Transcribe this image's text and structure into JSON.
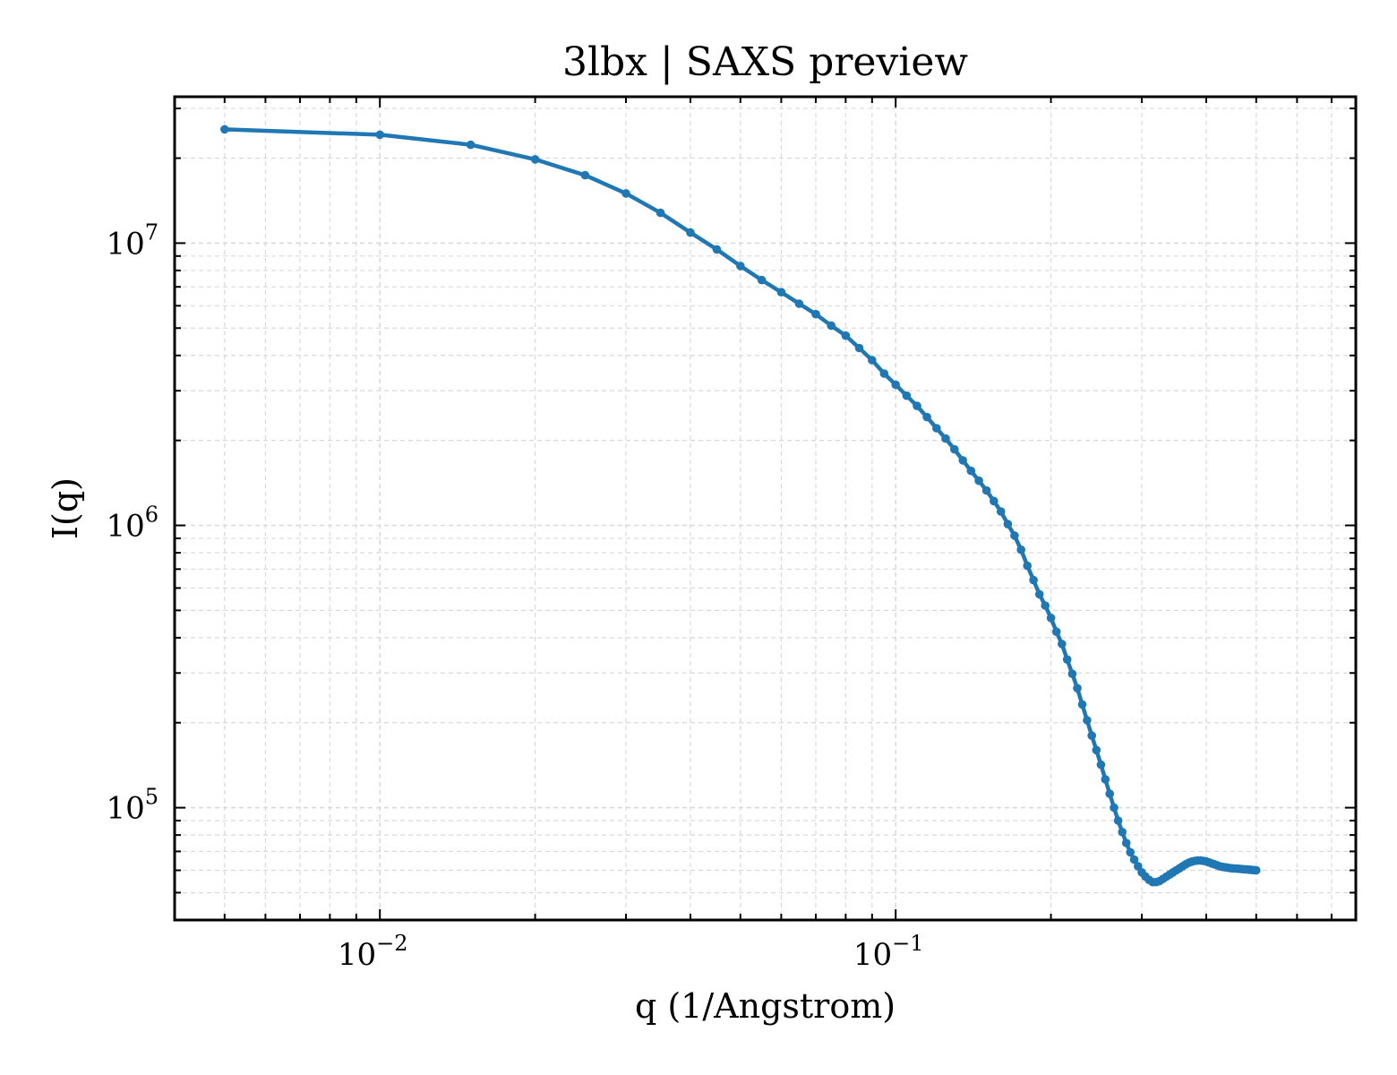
{
  "chart_data": {
    "type": "line",
    "title": "3lbx | SAXS preview",
    "xlabel": "q (1/Angstrom)",
    "ylabel": "I(q)",
    "xscale": "log",
    "yscale": "log",
    "xlim": [
      0.004,
      0.78
    ],
    "ylim": [
      40000,
      33000000
    ],
    "grid": true,
    "colors": {
      "line": "#1f77b4",
      "grid": "#d9d9d9",
      "axis": "#000000"
    },
    "x_ticks": [
      {
        "value": 0.01,
        "base": "10",
        "exp": "−2"
      },
      {
        "value": 0.1,
        "base": "10",
        "exp": "−1"
      }
    ],
    "y_ticks": [
      {
        "value": 100000,
        "base": "10",
        "exp": "5"
      },
      {
        "value": 1000000,
        "base": "10",
        "exp": "6"
      },
      {
        "value": 10000000,
        "base": "10",
        "exp": "7"
      }
    ],
    "series": [
      {
        "marker": "circle",
        "x": [
          0.005,
          0.01,
          0.015,
          0.02,
          0.025,
          0.03,
          0.035,
          0.04,
          0.045,
          0.05,
          0.055,
          0.06,
          0.065,
          0.07,
          0.075,
          0.08,
          0.085,
          0.09,
          0.095,
          0.1,
          0.105,
          0.11,
          0.115,
          0.12,
          0.125,
          0.13,
          0.135,
          0.14,
          0.145,
          0.15,
          0.155,
          0.16,
          0.165,
          0.17,
          0.175,
          0.18,
          0.185,
          0.19,
          0.195,
          0.2,
          0.205,
          0.21,
          0.215,
          0.22,
          0.225,
          0.23,
          0.235,
          0.24,
          0.245,
          0.25,
          0.255,
          0.26,
          0.265,
          0.27,
          0.275,
          0.28,
          0.285,
          0.29,
          0.295,
          0.3,
          0.305,
          0.31,
          0.315,
          0.32,
          0.325,
          0.33,
          0.335,
          0.34,
          0.345,
          0.35,
          0.355,
          0.36,
          0.365,
          0.37,
          0.375,
          0.38,
          0.385,
          0.39,
          0.395,
          0.4,
          0.405,
          0.41,
          0.415,
          0.42,
          0.425,
          0.43,
          0.435,
          0.44,
          0.445,
          0.45,
          0.455,
          0.46,
          0.465,
          0.47,
          0.475,
          0.48,
          0.485,
          0.49,
          0.495,
          0.5
        ],
        "y": [
          25300000,
          24200000,
          22300000,
          19800000,
          17400000,
          15000000,
          12800000,
          10900000,
          9500000,
          8300000,
          7400000,
          6700000,
          6100000,
          5600000,
          5100000,
          4700000,
          4250000,
          3850000,
          3450000,
          3150000,
          2880000,
          2650000,
          2420000,
          2210000,
          2030000,
          1860000,
          1700000,
          1560000,
          1440000,
          1330000,
          1220000,
          1120000,
          1010000,
          920000,
          820000,
          720000,
          640000,
          570000,
          520000,
          470000,
          420000,
          380000,
          335000,
          298000,
          265000,
          232000,
          204000,
          180000,
          160000,
          142000,
          126000,
          112000,
          100000,
          90000,
          82000,
          75000,
          69500,
          65500,
          62000,
          59000,
          57000,
          55500,
          54500,
          54500,
          55000,
          56000,
          57000,
          58000,
          59000,
          60000,
          61000,
          62000,
          63000,
          63800,
          64400,
          64800,
          65000,
          65000,
          64800,
          64500,
          64000,
          63500,
          63000,
          62500,
          62000,
          61700,
          61500,
          61300,
          61100,
          61000,
          60900,
          60800,
          60700,
          60600,
          60500,
          60400,
          60300,
          60200,
          60100,
          60000
        ]
      }
    ]
  }
}
